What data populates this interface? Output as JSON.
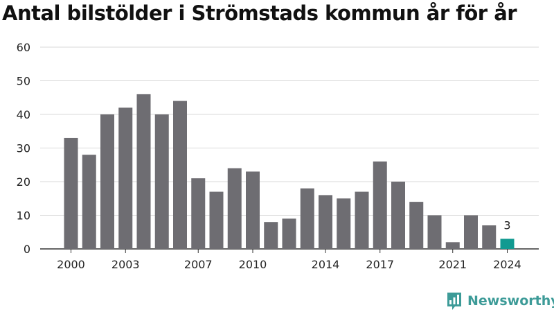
{
  "title": "Antal bilstölder i Strömstads kommun år för år",
  "brand": {
    "name": "Newsworthy",
    "icon": "newsworthy-logo-icon"
  },
  "colors": {
    "bar": "#6e6d72",
    "highlight": "#129a91",
    "grid": "#d9d9d9",
    "axis": "#333333",
    "brand": "#3d9b98"
  },
  "chart_data": {
    "type": "bar",
    "title": "Antal bilstölder i Strömstads kommun år för år",
    "xlabel": "",
    "ylabel": "",
    "categories": [
      "2000",
      "2001",
      "2002",
      "2003",
      "2004",
      "2005",
      "2006",
      "2007",
      "2008",
      "2009",
      "2010",
      "2011",
      "2012",
      "2013",
      "2014",
      "2015",
      "2016",
      "2017",
      "2018",
      "2019",
      "2020",
      "2021",
      "2022",
      "2023",
      "2024"
    ],
    "values": [
      33,
      28,
      40,
      42,
      46,
      40,
      44,
      21,
      17,
      24,
      23,
      8,
      9,
      18,
      16,
      15,
      17,
      26,
      20,
      14,
      10,
      2,
      10,
      7,
      3
    ],
    "x_tick_labels": [
      "2000",
      "2003",
      "2007",
      "2010",
      "2014",
      "2017",
      "2021",
      "2024"
    ],
    "y_ticks": [
      0,
      10,
      20,
      30,
      40,
      50,
      60
    ],
    "ylim": [
      0,
      60
    ],
    "grid": true,
    "highlight": {
      "category": "2024",
      "label": "3"
    }
  }
}
